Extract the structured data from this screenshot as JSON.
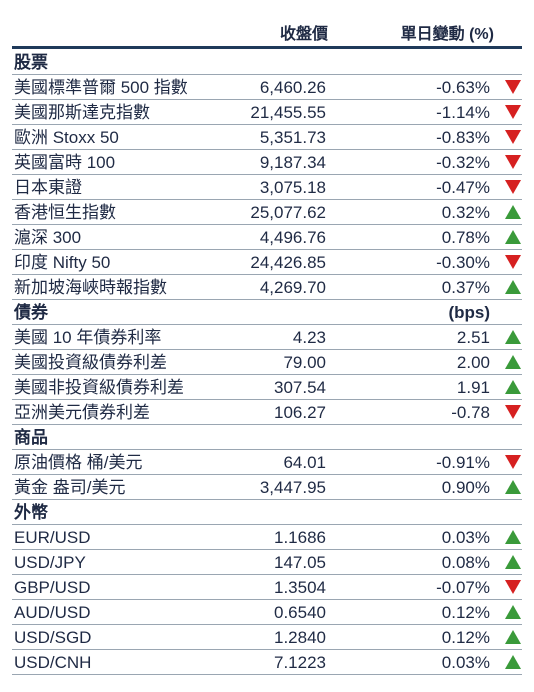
{
  "header": {
    "col_value": "收盤價",
    "col_change": "單日變動 (%)"
  },
  "colors": {
    "up": "#3a9a3a",
    "down": "#d62020",
    "rule": "#1f3a5a"
  },
  "rows": [
    {
      "type": "section",
      "name": "股票"
    },
    {
      "type": "data",
      "name": "美國標準普爾 500 指數",
      "value": "6,460.26",
      "change": "-0.63%",
      "dir": "down"
    },
    {
      "type": "data",
      "name": "美國那斯達克指數",
      "value": "21,455.55",
      "change": "-1.14%",
      "dir": "down"
    },
    {
      "type": "data",
      "name": "歐洲 Stoxx 50",
      "value": "5,351.73",
      "change": "-0.83%",
      "dir": "down"
    },
    {
      "type": "data",
      "name": "英國富時 100",
      "value": "9,187.34",
      "change": "-0.32%",
      "dir": "down"
    },
    {
      "type": "data",
      "name": "日本東證",
      "value": "3,075.18",
      "change": "-0.47%",
      "dir": "down"
    },
    {
      "type": "data",
      "name": "香港恒生指數",
      "value": "25,077.62",
      "change": "0.32%",
      "dir": "up"
    },
    {
      "type": "data",
      "name": "滬深 300",
      "value": "4,496.76",
      "change": "0.78%",
      "dir": "up"
    },
    {
      "type": "data",
      "name": "印度 Nifty 50",
      "value": "24,426.85",
      "change": "-0.30%",
      "dir": "down"
    },
    {
      "type": "data",
      "name": "新加坡海峽時報指數",
      "value": "4,269.70",
      "change": "0.37%",
      "dir": "up"
    },
    {
      "type": "section",
      "name": "債券",
      "unit": "(bps)"
    },
    {
      "type": "data",
      "name": "美國 10 年債券利率",
      "value": "4.23",
      "change": "2.51",
      "dir": "up"
    },
    {
      "type": "data",
      "name": "美國投資級債券利差",
      "value": "79.00",
      "change": "2.00",
      "dir": "up"
    },
    {
      "type": "data",
      "name": "美國非投資級債券利差",
      "value": "307.54",
      "change": "1.91",
      "dir": "up"
    },
    {
      "type": "data",
      "name": "亞洲美元債券利差",
      "value": "106.27",
      "change": "-0.78",
      "dir": "down"
    },
    {
      "type": "section",
      "name": "商品"
    },
    {
      "type": "data",
      "name": "原油價格 桶/美元",
      "value": "64.01",
      "change": "-0.91%",
      "dir": "down"
    },
    {
      "type": "data",
      "name": "黃金 盎司/美元",
      "value": "3,447.95",
      "change": "0.90%",
      "dir": "up"
    },
    {
      "type": "section",
      "name": "外幣"
    },
    {
      "type": "data",
      "name": "EUR/USD",
      "value": "1.1686",
      "change": "0.03%",
      "dir": "up"
    },
    {
      "type": "data",
      "name": "USD/JPY",
      "value": "147.05",
      "change": "0.08%",
      "dir": "up"
    },
    {
      "type": "data",
      "name": "GBP/USD",
      "value": "1.3504",
      "change": "-0.07%",
      "dir": "down"
    },
    {
      "type": "data",
      "name": "AUD/USD",
      "value": "0.6540",
      "change": "0.12%",
      "dir": "up"
    },
    {
      "type": "data",
      "name": "USD/SGD",
      "value": "1.2840",
      "change": "0.12%",
      "dir": "up"
    },
    {
      "type": "data",
      "name": "USD/CNH",
      "value": "7.1223",
      "change": "0.03%",
      "dir": "up"
    }
  ]
}
